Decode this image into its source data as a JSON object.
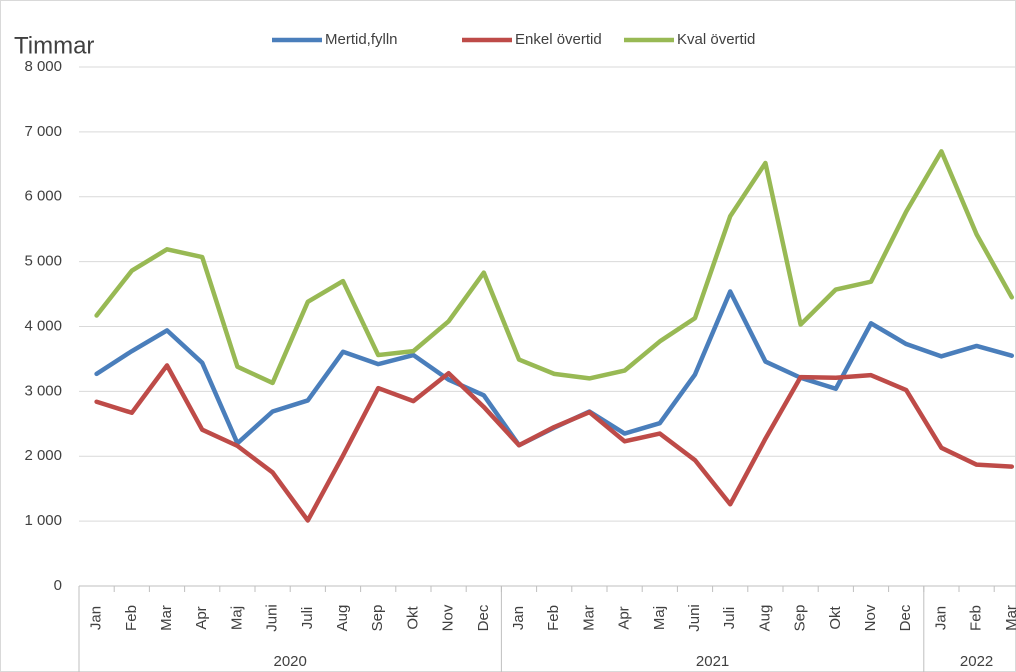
{
  "chart_data": {
    "type": "line",
    "ylabel": "Timmar",
    "category_groups": [
      {
        "name": "2020",
        "categories": [
          "Jan",
          "Feb",
          "Mar",
          "Apr",
          "Maj",
          "Juni",
          "Juli",
          "Aug",
          "Sep",
          "Okt",
          "Nov",
          "Dec"
        ]
      },
      {
        "name": "2021",
        "categories": [
          "Jan",
          "Feb",
          "Mar",
          "Apr",
          "Maj",
          "Juni",
          "Juli",
          "Aug",
          "Sep",
          "Okt",
          "Nov",
          "Dec"
        ]
      },
      {
        "name": "2022",
        "categories": [
          "Jan",
          "Feb",
          "Mar"
        ]
      }
    ],
    "series": [
      {
        "name": "Mertid,fylln",
        "color": "#4a7ebb",
        "values": [
          3270,
          3620,
          3940,
          3440,
          2200,
          2690,
          2860,
          3610,
          3420,
          3560,
          3180,
          2940,
          2170,
          2440,
          2690,
          2350,
          2510,
          3260,
          4540,
          3460,
          3210,
          3040,
          4050,
          3730,
          3540,
          3700,
          3550
        ]
      },
      {
        "name": "Enkel övertid",
        "color": "#be4b48",
        "values": [
          2840,
          2670,
          3400,
          2410,
          2160,
          1750,
          1010,
          2010,
          3050,
          2850,
          3280,
          2760,
          2170,
          2450,
          2680,
          2230,
          2350,
          1940,
          1260,
          2270,
          3220,
          3210,
          3250,
          3020,
          2130,
          1870,
          1840
        ]
      },
      {
        "name": "Kval övertid",
        "color": "#98b954",
        "values": [
          4170,
          4860,
          5190,
          5070,
          3380,
          3130,
          4380,
          4700,
          3560,
          3620,
          4080,
          4830,
          3490,
          3270,
          3200,
          3320,
          3770,
          4130,
          5700,
          6520,
          4030,
          4570,
          4690,
          5770,
          6700,
          5420,
          4450
        ]
      }
    ],
    "ylim": [
      0,
      8000
    ],
    "yticks": [
      0,
      {
        "value": 1000,
        "label": "1 000"
      },
      {
        "value": 2000,
        "label": "2 000"
      },
      {
        "value": 3000,
        "label": "3 000"
      },
      {
        "value": 4000,
        "label": "4 000"
      },
      {
        "value": 5000,
        "label": "5 000"
      },
      {
        "value": 6000,
        "label": "6 000"
      },
      {
        "value": 7000,
        "label": "7 000"
      },
      {
        "value": 8000,
        "label": "8 000"
      }
    ],
    "grid": true,
    "legend": "top"
  }
}
